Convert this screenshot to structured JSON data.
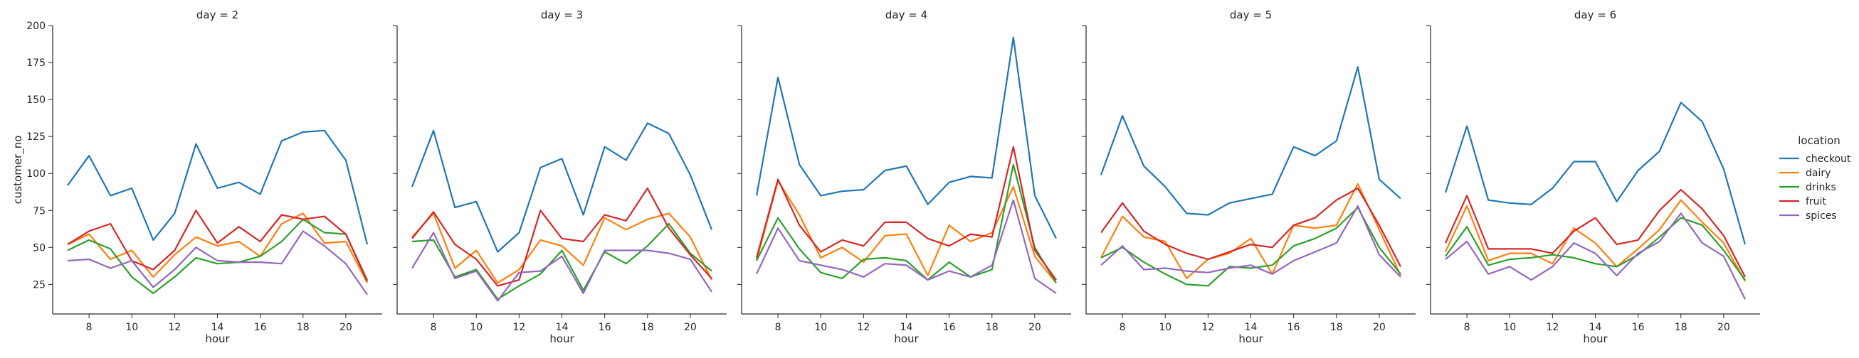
{
  "chart_data": {
    "type": "line",
    "ylabel": "customer_no",
    "xlabel": "hour",
    "ylim": [
      5,
      200
    ],
    "xlim": [
      6.3,
      21.7
    ],
    "yticks": [
      25,
      50,
      75,
      100,
      125,
      150,
      175,
      200
    ],
    "xticks": [
      8,
      10,
      12,
      14,
      16,
      18,
      20
    ],
    "hours": [
      7,
      8,
      9,
      10,
      11,
      12,
      13,
      14,
      15,
      16,
      17,
      18,
      19,
      20,
      21
    ],
    "grid": false,
    "legend": {
      "title": "location",
      "placement": "right",
      "entries": [
        {
          "name": "checkout",
          "color": "#1f77b4"
        },
        {
          "name": "dairy",
          "color": "#ff7f0e"
        },
        {
          "name": "drinks",
          "color": "#2ca02c"
        },
        {
          "name": "fruit",
          "color": "#d62728"
        },
        {
          "name": "spices",
          "color": "#9467bd"
        }
      ]
    },
    "panels": [
      {
        "title": "day = 2",
        "series": [
          {
            "name": "checkout",
            "values": [
              92,
              112,
              85,
              90,
              55,
              73,
              120,
              90,
              94,
              86,
              122,
              128,
              129,
              109,
              52
            ]
          },
          {
            "name": "dairy",
            "values": [
              52,
              59,
              42,
              48,
              30,
              45,
              57,
              51,
              54,
              44,
              66,
              73,
              53,
              54,
              26
            ]
          },
          {
            "name": "drinks",
            "values": [
              48,
              55,
              49,
              30,
              19,
              30,
              43,
              39,
              40,
              44,
              54,
              69,
              60,
              59,
              28
            ]
          },
          {
            "name": "fruit",
            "values": [
              52,
              61,
              66,
              41,
              35,
              48,
              75,
              53,
              64,
              54,
              72,
              69,
              71,
              59,
              27
            ]
          },
          {
            "name": "spices",
            "values": [
              41,
              42,
              36,
              41,
              23,
              35,
              50,
              41,
              40,
              40,
              39,
              61,
              51,
              39,
              18
            ]
          }
        ]
      },
      {
        "title": "day = 3",
        "series": [
          {
            "name": "checkout",
            "values": [
              91,
              129,
              77,
              81,
              47,
              60,
              104,
              110,
              72,
              118,
              109,
              134,
              127,
              99,
              62
            ]
          },
          {
            "name": "dairy",
            "values": [
              57,
              73,
              36,
              48,
              26,
              35,
              55,
              51,
              38,
              70,
              62,
              69,
              73,
              57,
              28
            ]
          },
          {
            "name": "drinks",
            "values": [
              54,
              55,
              30,
              35,
              15,
              24,
              32,
              48,
              21,
              47,
              39,
              51,
              66,
              46,
              34
            ]
          },
          {
            "name": "fruit",
            "values": [
              56,
              74,
              52,
              42,
              24,
              28,
              75,
              56,
              54,
              72,
              68,
              90,
              63,
              45,
              29
            ]
          },
          {
            "name": "spices",
            "values": [
              36,
              60,
              29,
              34,
              14,
              33,
              34,
              44,
              19,
              48,
              48,
              48,
              46,
              42,
              20
            ]
          }
        ]
      },
      {
        "title": "day = 4",
        "series": [
          {
            "name": "checkout",
            "values": [
              85,
              165,
              106,
              85,
              88,
              89,
              102,
              105,
              79,
              94,
              98,
              97,
              192,
              85,
              56
            ]
          },
          {
            "name": "dairy",
            "values": [
              41,
              95,
              72,
              43,
              50,
              40,
              58,
              59,
              31,
              65,
              54,
              60,
              91,
              44,
              26
            ]
          },
          {
            "name": "drinks",
            "values": [
              41,
              70,
              49,
              33,
              29,
              42,
              43,
              41,
              28,
              40,
              30,
              35,
              106,
              50,
              26
            ]
          },
          {
            "name": "fruit",
            "values": [
              43,
              96,
              65,
              47,
              55,
              51,
              67,
              67,
              56,
              51,
              59,
              57,
              118,
              48,
              28
            ]
          },
          {
            "name": "spices",
            "values": [
              32,
              63,
              41,
              38,
              35,
              30,
              39,
              38,
              28,
              34,
              30,
              38,
              82,
              29,
              19
            ]
          }
        ]
      },
      {
        "title": "day = 5",
        "series": [
          {
            "name": "checkout",
            "values": [
              99,
              139,
              105,
              91,
              73,
              72,
              80,
              83,
              86,
              118,
              112,
              122,
              172,
              96,
              83
            ]
          },
          {
            "name": "dairy",
            "values": [
              43,
              71,
              57,
              54,
              29,
              42,
              46,
              56,
              32,
              65,
              63,
              65,
              93,
              62,
              31
            ]
          },
          {
            "name": "drinks",
            "values": [
              43,
              50,
              40,
              32,
              25,
              24,
              37,
              36,
              38,
              51,
              56,
              63,
              77,
              50,
              32
            ]
          },
          {
            "name": "fruit",
            "values": [
              60,
              80,
              61,
              52,
              46,
              42,
              47,
              52,
              50,
              65,
              70,
              82,
              90,
              65,
              37
            ]
          },
          {
            "name": "spices",
            "values": [
              38,
              51,
              35,
              36,
              34,
              33,
              36,
              38,
              32,
              41,
              47,
              53,
              78,
              45,
              30
            ]
          }
        ]
      },
      {
        "title": "day = 6",
        "series": [
          {
            "name": "checkout",
            "values": [
              87,
              132,
              82,
              80,
              79,
              90,
              108,
              108,
              81,
              102,
              115,
              148,
              135,
              103,
              52
            ]
          },
          {
            "name": "dairy",
            "values": [
              47,
              78,
              41,
              46,
              46,
              39,
              63,
              53,
              37,
              49,
              62,
              82,
              67,
              53,
              27
            ]
          },
          {
            "name": "drinks",
            "values": [
              44,
              64,
              38,
              42,
              43,
              45,
              43,
              39,
              37,
              45,
              57,
              70,
              65,
              48,
              28
            ]
          },
          {
            "name": "fruit",
            "values": [
              53,
              85,
              49,
              49,
              49,
              46,
              61,
              70,
              52,
              55,
              75,
              89,
              76,
              58,
              30
            ]
          },
          {
            "name": "spices",
            "values": [
              42,
              54,
              32,
              37,
              28,
              37,
              53,
              46,
              31,
              46,
              54,
              73,
              53,
              44,
              15
            ]
          }
        ]
      }
    ]
  }
}
